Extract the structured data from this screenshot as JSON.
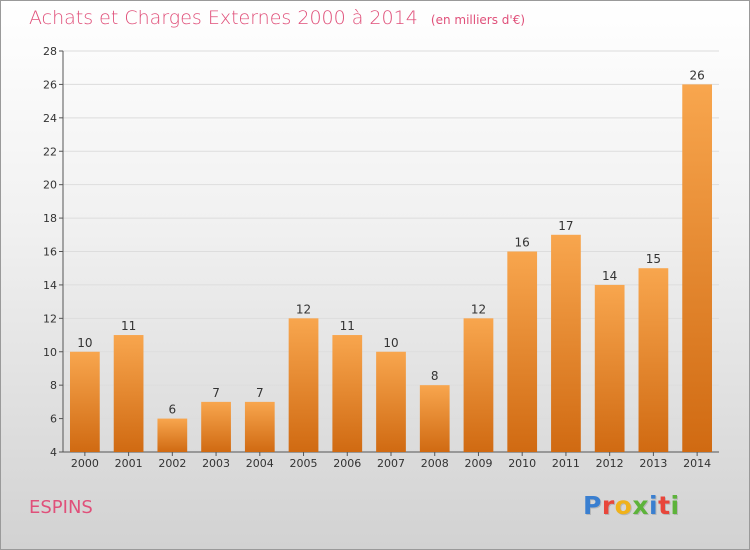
{
  "header": {
    "title": "Achats et Charges Externes 2000 à 2014",
    "unit": "(en milliers d'€)"
  },
  "footer": {
    "place": "ESPINS",
    "brand": "Proxiti"
  },
  "colors": {
    "title": "#e0507a",
    "bar_light": "#f8a64e",
    "bar_dark": "#d06a12",
    "logo_letters": [
      "#3a7fd0",
      "#e8463b",
      "#f0b21a",
      "#5db33b",
      "#3a7fd0",
      "#e8463b",
      "#5db33b"
    ]
  },
  "chart_data": {
    "type": "bar",
    "categories": [
      "2000",
      "2001",
      "2002",
      "2003",
      "2004",
      "2005",
      "2006",
      "2007",
      "2008",
      "2009",
      "2010",
      "2011",
      "2012",
      "2013",
      "2014"
    ],
    "values": [
      10,
      11,
      6,
      7,
      7,
      12,
      11,
      10,
      8,
      12,
      16,
      17,
      14,
      15,
      26
    ],
    "value_labels": [
      "10",
      "11",
      "6",
      "7",
      "7",
      "12",
      "11",
      "10",
      "8",
      "12",
      "16",
      "17",
      "14",
      "15",
      "26"
    ],
    "title": "Achats et Charges Externes 2000 à 2014",
    "xlabel": "",
    "ylabel": "",
    "ylim": [
      4,
      28
    ],
    "yticks": [
      4,
      6,
      8,
      10,
      12,
      14,
      16,
      18,
      20,
      22,
      24,
      26,
      28
    ],
    "grid": "horizontal",
    "legend": "none"
  }
}
